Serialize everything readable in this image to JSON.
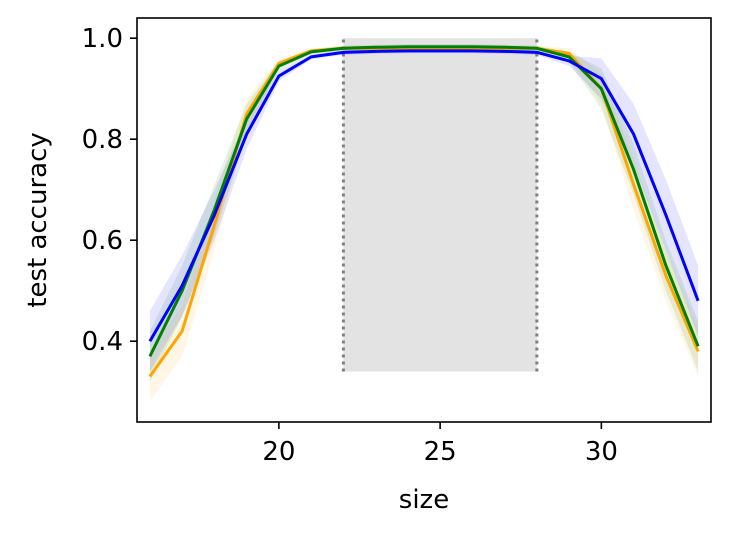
{
  "chart_data": {
    "type": "line",
    "title": "",
    "xlabel": "size",
    "ylabel": "test accuracy",
    "xlim": [
      15.6,
      33.4
    ],
    "ylim": [
      0.24,
      1.04
    ],
    "x_ticks": [
      20,
      25,
      30
    ],
    "y_ticks": [
      0.4,
      0.6,
      0.8,
      1.0
    ],
    "x_tick_labels": [
      "20",
      "25",
      "30"
    ],
    "y_tick_labels": [
      "0.4",
      "0.6",
      "0.8",
      "1.0"
    ],
    "grid": false,
    "legend": false,
    "shaded_region": {
      "x": [
        22,
        28
      ],
      "y": [
        0.34,
        1.0
      ],
      "color": "#e3e3e3",
      "edge_color": "#808080"
    },
    "x": [
      16,
      17,
      18,
      19,
      20,
      21,
      22,
      23,
      24,
      25,
      26,
      27,
      28,
      29,
      30,
      31,
      32,
      33
    ],
    "series": [
      {
        "color": "#ffa500",
        "values": [
          0.33,
          0.42,
          0.63,
          0.85,
          0.95,
          0.975,
          0.98,
          0.98,
          0.98,
          0.98,
          0.98,
          0.98,
          0.98,
          0.97,
          0.9,
          0.71,
          0.53,
          0.38
        ],
        "band": [
          0.05,
          0.05,
          0.05,
          0.03,
          0.01,
          0.005,
          0.005,
          0.005,
          0.005,
          0.005,
          0.005,
          0.005,
          0.005,
          0.01,
          0.03,
          0.05,
          0.05,
          0.05
        ]
      },
      {
        "color": "#008000",
        "values": [
          0.37,
          0.5,
          0.66,
          0.84,
          0.945,
          0.973,
          0.98,
          0.982,
          0.983,
          0.983,
          0.983,
          0.982,
          0.98,
          0.963,
          0.9,
          0.74,
          0.55,
          0.39
        ],
        "band": [
          0.05,
          0.05,
          0.05,
          0.03,
          0.01,
          0.005,
          0.005,
          0.005,
          0.005,
          0.005,
          0.005,
          0.005,
          0.005,
          0.01,
          0.04,
          0.05,
          0.05,
          0.05
        ]
      },
      {
        "color": "#0000ff",
        "values": [
          0.4,
          0.51,
          0.65,
          0.81,
          0.925,
          0.963,
          0.972,
          0.974,
          0.975,
          0.975,
          0.975,
          0.974,
          0.972,
          0.955,
          0.92,
          0.81,
          0.65,
          0.48
        ],
        "band": [
          0.06,
          0.06,
          0.05,
          0.03,
          0.01,
          0.005,
          0.005,
          0.005,
          0.005,
          0.005,
          0.005,
          0.005,
          0.005,
          0.01,
          0.04,
          0.06,
          0.07,
          0.07
        ]
      }
    ]
  }
}
